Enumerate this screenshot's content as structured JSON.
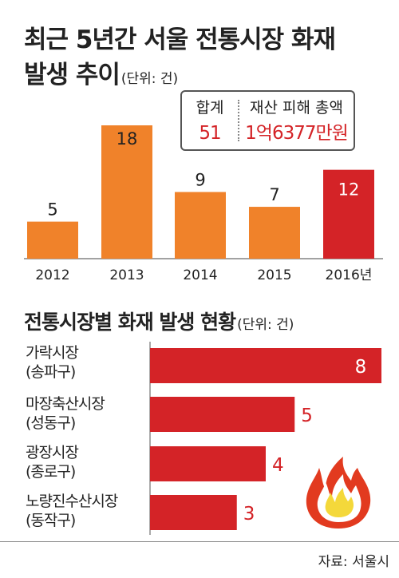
{
  "title1": {
    "text": "최근 5년간 서울 전통시장 화재",
    "line2": "발생 추이",
    "unit": "(단위: 건)"
  },
  "summary": {
    "total_label": "합계",
    "total_value": "51",
    "damage_label": "재산 피해 총액",
    "damage_value": "1억6377만원"
  },
  "title2": {
    "text": "전통시장별 화재 발생 현황",
    "unit": "(단위: 건)"
  },
  "source": "자료: 서울시",
  "icons": {
    "flame": "flame-icon"
  },
  "colors": {
    "orange": "#f0822a",
    "red": "#d42327",
    "text": "#222222"
  },
  "chart_data": [
    {
      "type": "bar",
      "categories": [
        "2012",
        "2013",
        "2014",
        "2015",
        "2016년"
      ],
      "values": [
        5,
        18,
        9,
        7,
        12
      ],
      "highlight_index": 4,
      "title": "최근 5년간 서울 전통시장 화재 발생 추이",
      "unit": "(단위: 건)",
      "ylim": [
        0,
        18
      ],
      "grid": false
    },
    {
      "type": "bar",
      "orientation": "horizontal",
      "categories": [
        {
          "name": "가락시장",
          "district": "(송파구)"
        },
        {
          "name": "마장축산시장",
          "district": "(성동구)"
        },
        {
          "name": "광장시장",
          "district": "(종로구)"
        },
        {
          "name": "노량진수산시장",
          "district": "(동작구)"
        }
      ],
      "values": [
        8,
        5,
        4,
        3
      ],
      "title": "전통시장별 화재 발생 현황",
      "unit": "(단위: 건)",
      "xlim": [
        0,
        8
      ],
      "grid": false
    }
  ]
}
